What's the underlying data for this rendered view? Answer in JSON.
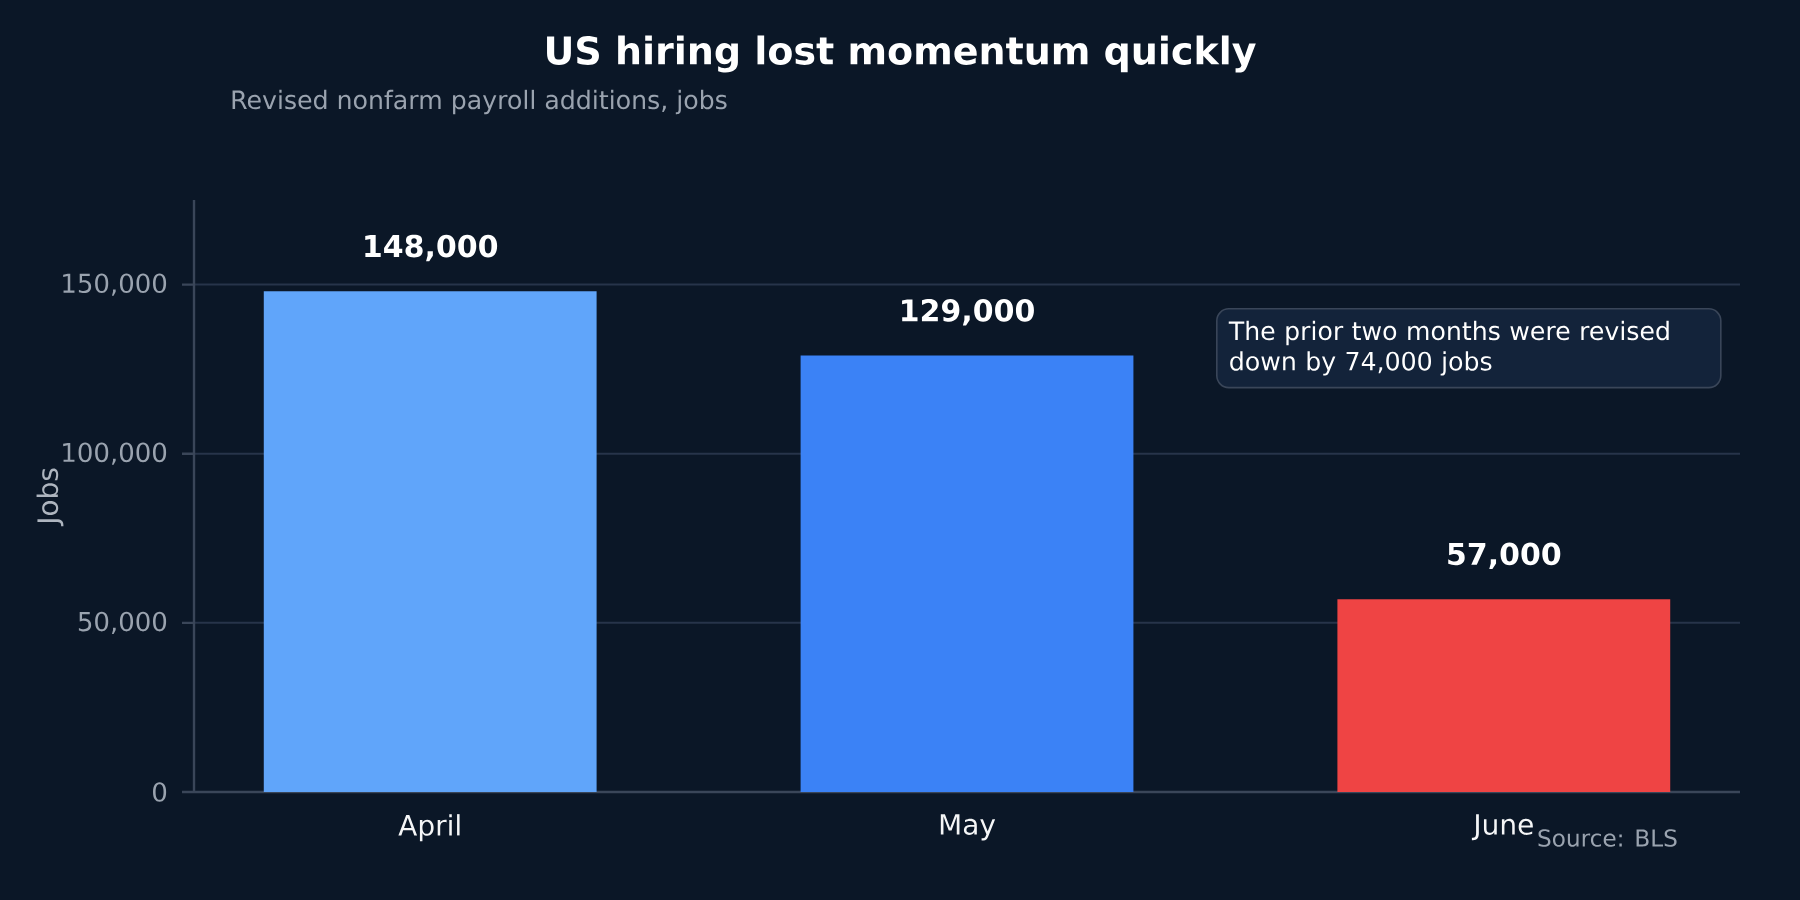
{
  "chart_data": {
    "type": "bar",
    "title": "US hiring lost momentum quickly",
    "subtitle": "Revised nonfarm payroll additions, jobs",
    "ylabel": "Jobs",
    "categories": [
      "April",
      "May",
      "June"
    ],
    "values": [
      148000,
      129000,
      57000
    ],
    "colors": [
      "#60a5fa",
      "#3b82f6",
      "#ef4444"
    ],
    "value_labels": [
      "148,000",
      "129,000",
      "57,000"
    ],
    "ylim": [
      0,
      175000
    ],
    "yticks": [
      0,
      {
        "value": 50000,
        "label": "50,000"
      },
      {
        "value": 100000,
        "label": "100,000"
      },
      {
        "value": 150000,
        "label": "150,000"
      }
    ],
    "grid": "y",
    "annotations": [
      "The prior two months were revised down by 74,000 jobs",
      "Source: BLS"
    ]
  }
}
